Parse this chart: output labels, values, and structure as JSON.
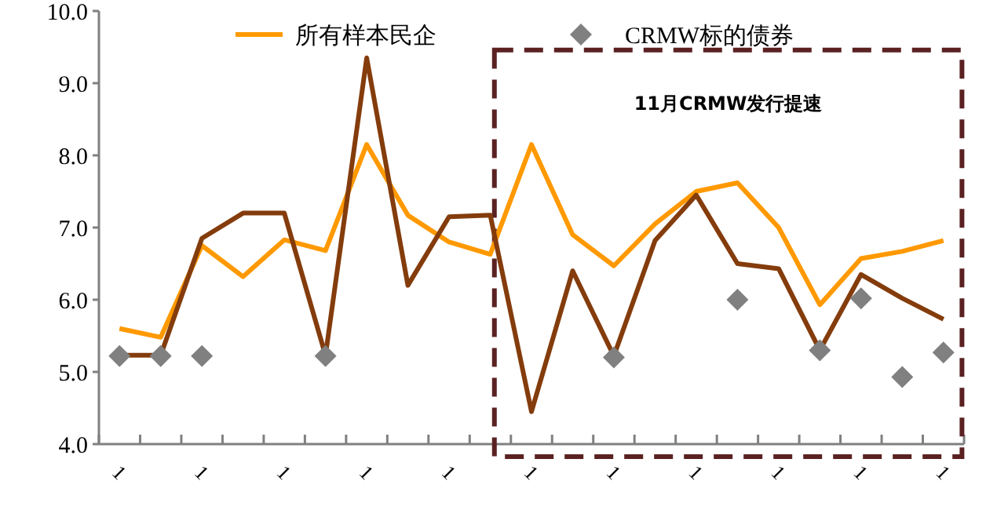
{
  "chart_data": {
    "type": "line",
    "categories": [
      "1",
      null,
      "1",
      null,
      "1",
      null,
      "1",
      null,
      "1",
      null,
      "1",
      null,
      "1",
      null,
      "1",
      null,
      "1",
      null,
      "1",
      null,
      "1"
    ],
    "series": [
      {
        "name": "所有样本民企",
        "color": "#ff9900",
        "values": [
          5.6,
          5.48,
          6.75,
          6.32,
          6.83,
          6.68,
          8.15,
          7.17,
          6.8,
          6.63,
          8.15,
          6.9,
          6.47,
          7.05,
          7.5,
          7.62,
          7.0,
          5.93,
          6.57,
          6.67,
          6.82
        ]
      },
      {
        "color": "#843c0c",
        "values": [
          5.23,
          5.23,
          6.85,
          7.2,
          7.2,
          5.23,
          9.35,
          6.2,
          7.15,
          7.17,
          4.45,
          6.4,
          5.22,
          6.82,
          7.45,
          6.5,
          6.43,
          5.3,
          6.35,
          6.02,
          5.73
        ]
      },
      {
        "name": "CRMW标的债券",
        "type": "scatter",
        "color": "#808080",
        "marker": "diamond",
        "values": [
          5.22,
          5.22,
          5.22,
          null,
          null,
          5.22,
          null,
          null,
          null,
          null,
          null,
          null,
          5.2,
          null,
          null,
          6.0,
          null,
          5.3,
          6.02,
          4.93,
          5.27
        ]
      }
    ],
    "ylim": [
      4.0,
      10.0
    ],
    "yticks": [
      {
        "value": 4,
        "label": "4.0"
      },
      {
        "value": 5,
        "label": "5.0"
      },
      {
        "value": 6,
        "label": "6.0"
      },
      {
        "value": 7,
        "label": "7.0"
      },
      {
        "value": 8,
        "label": "8.0"
      },
      {
        "value": 9,
        "label": "9.0"
      },
      {
        "value": 10,
        "label": "10.0"
      }
    ],
    "annotations": [
      "11月CRMW发行提速"
    ],
    "legend": "top",
    "grid": false
  }
}
